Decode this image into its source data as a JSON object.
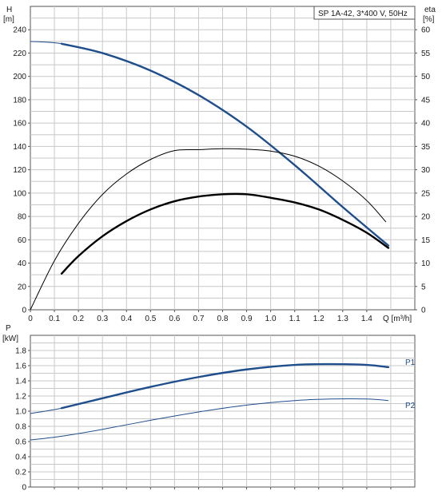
{
  "chart_data": [
    {
      "type": "line",
      "title": "SP 1A-42, 3*400 V, 50Hz",
      "xlabel": "Q [m³/h]",
      "ylabel_left": [
        "H",
        "[m]"
      ],
      "ylabel_right": [
        "eta",
        "[%]"
      ],
      "xlim": [
        0,
        1.6
      ],
      "ylim_left": [
        0,
        260
      ],
      "ylim_right": [
        0,
        65
      ],
      "grid": true,
      "x_ticks": [
        "0",
        "0.1",
        "0.2",
        "0.3",
        "0.4",
        "0.5",
        "0.6",
        "0.7",
        "0.8",
        "0.9",
        "1.0",
        "1.1",
        "1.2",
        "1.3",
        "1.4"
      ],
      "y_ticks_left": [
        "0",
        "20",
        "40",
        "60",
        "80",
        "100",
        "120",
        "140",
        "160",
        "180",
        "200",
        "220",
        "240"
      ],
      "y_ticks_right": [
        "0",
        "5",
        "10",
        "15",
        "20",
        "25",
        "30",
        "35",
        "40",
        "45",
        "50",
        "55",
        "60"
      ],
      "series": [
        {
          "axis": "left",
          "color": "#1f4e8c",
          "x": [
            0,
            0.13,
            0.3,
            0.5,
            0.7,
            0.9,
            1.1,
            1.3,
            1.49
          ],
          "y": [
            230,
            228,
            220,
            205,
            184,
            157,
            124,
            88,
            55
          ],
          "bold_from": 0.13
        },
        {
          "axis": "right",
          "color": "#000000",
          "x": [
            0,
            0.1,
            0.2,
            0.3,
            0.4,
            0.5,
            0.6,
            0.7,
            0.8,
            0.9,
            1.0,
            1.1,
            1.2,
            1.3,
            1.4,
            1.48
          ],
          "y": [
            0,
            10.5,
            18.5,
            24.7,
            29.1,
            32.2,
            34.1,
            34.3,
            34.5,
            34.4,
            34.0,
            32.9,
            30.8,
            27.6,
            23.4,
            18.8
          ],
          "bold_from": null
        },
        {
          "axis": "left",
          "color": "#000000",
          "x": [
            0.13,
            0.2,
            0.3,
            0.4,
            0.5,
            0.6,
            0.7,
            0.8,
            0.9,
            1.0,
            1.1,
            1.2,
            1.3,
            1.4,
            1.49
          ],
          "y": [
            31,
            46,
            63,
            76,
            86,
            93,
            97,
            99,
            99,
            96,
            92,
            86,
            77,
            66,
            53
          ],
          "bold_from": 0.13
        }
      ]
    },
    {
      "type": "line",
      "ylabel": [
        "P",
        "[kW]"
      ],
      "xlim": [
        0,
        1.6
      ],
      "ylim": [
        0,
        2.0
      ],
      "grid": true,
      "y_ticks": [
        "0",
        "0.2",
        "0.4",
        "0.6",
        "0.8",
        "1.0",
        "1.2",
        "1.4",
        "1.6",
        "1.8"
      ],
      "series": [
        {
          "name": "P1",
          "color": "#1f4e8c",
          "x": [
            0,
            0.13,
            0.3,
            0.5,
            0.7,
            0.9,
            1.1,
            1.25,
            1.4,
            1.49
          ],
          "y": [
            0.97,
            1.04,
            1.17,
            1.32,
            1.45,
            1.55,
            1.61,
            1.62,
            1.61,
            1.58
          ],
          "bold_from": 0.13
        },
        {
          "name": "P2",
          "color": "#1f4e8c",
          "x": [
            0,
            0.13,
            0.3,
            0.5,
            0.7,
            0.9,
            1.1,
            1.25,
            1.4,
            1.49
          ],
          "y": [
            0.62,
            0.67,
            0.76,
            0.88,
            0.99,
            1.08,
            1.14,
            1.16,
            1.16,
            1.14
          ],
          "bold_from": null
        }
      ]
    }
  ]
}
